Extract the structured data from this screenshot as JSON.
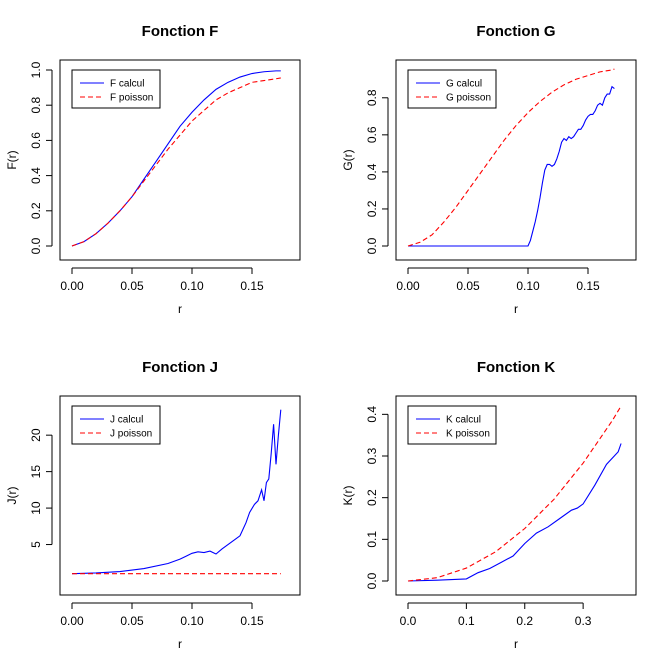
{
  "chart_data": [
    {
      "type": "line",
      "title": "Fonction F",
      "xlabel": "r",
      "ylabel": "F(r)",
      "xlim": [
        0,
        0.18
      ],
      "ylim": [
        0,
        1.0
      ],
      "xticks": [
        "0.00",
        "0.05",
        "0.10",
        "0.15"
      ],
      "yticks": [
        "0.0",
        "0.2",
        "0.4",
        "0.6",
        "0.8",
        "1.0"
      ],
      "legend_position": "top-left",
      "series": [
        {
          "name": "F calcul",
          "color": "#0000ff",
          "style": "solid",
          "x": [
            0,
            0.01,
            0.02,
            0.03,
            0.04,
            0.05,
            0.06,
            0.07,
            0.08,
            0.09,
            0.1,
            0.11,
            0.12,
            0.13,
            0.14,
            0.15,
            0.16,
            0.17,
            0.174
          ],
          "y": [
            0,
            0.025,
            0.07,
            0.13,
            0.2,
            0.28,
            0.38,
            0.48,
            0.58,
            0.68,
            0.76,
            0.83,
            0.89,
            0.93,
            0.96,
            0.98,
            0.99,
            0.995,
            0.995
          ]
        },
        {
          "name": "F poisson",
          "color": "#ff0000",
          "style": "dashed",
          "x": [
            0,
            0.01,
            0.02,
            0.03,
            0.04,
            0.05,
            0.06,
            0.07,
            0.08,
            0.09,
            0.1,
            0.11,
            0.12,
            0.13,
            0.14,
            0.15,
            0.16,
            0.17,
            0.174
          ],
          "y": [
            0,
            0.025,
            0.07,
            0.13,
            0.2,
            0.28,
            0.37,
            0.46,
            0.55,
            0.63,
            0.71,
            0.77,
            0.83,
            0.87,
            0.9,
            0.93,
            0.94,
            0.95,
            0.955
          ]
        }
      ]
    },
    {
      "type": "line",
      "title": "Fonction G",
      "xlabel": "r",
      "ylabel": "G(r)",
      "xlim": [
        0,
        0.18
      ],
      "ylim": [
        0,
        0.95
      ],
      "xticks": [
        "0.00",
        "0.05",
        "0.10",
        "0.15"
      ],
      "yticks": [
        "0.0",
        "0.2",
        "0.4",
        "0.6",
        "0.8"
      ],
      "legend_position": "top-left",
      "series": [
        {
          "name": "G calcul",
          "color": "#0000ff",
          "style": "solid",
          "x": [
            0,
            0.1,
            0.102,
            0.104,
            0.106,
            0.108,
            0.11,
            0.112,
            0.114,
            0.116,
            0.118,
            0.12,
            0.122,
            0.124,
            0.126,
            0.128,
            0.13,
            0.132,
            0.134,
            0.136,
            0.138,
            0.14,
            0.142,
            0.144,
            0.146,
            0.148,
            0.15,
            0.152,
            0.154,
            0.156,
            0.158,
            0.16,
            0.162,
            0.164,
            0.166,
            0.168,
            0.17,
            0.172
          ],
          "y": [
            0,
            0,
            0.03,
            0.08,
            0.13,
            0.19,
            0.26,
            0.34,
            0.41,
            0.44,
            0.44,
            0.43,
            0.44,
            0.47,
            0.51,
            0.56,
            0.58,
            0.57,
            0.59,
            0.58,
            0.59,
            0.61,
            0.63,
            0.63,
            0.65,
            0.68,
            0.7,
            0.71,
            0.71,
            0.73,
            0.76,
            0.77,
            0.76,
            0.8,
            0.82,
            0.82,
            0.86,
            0.85
          ]
        },
        {
          "name": "G poisson",
          "color": "#ff0000",
          "style": "dashed",
          "x": [
            0,
            0.01,
            0.02,
            0.03,
            0.04,
            0.05,
            0.06,
            0.07,
            0.08,
            0.09,
            0.1,
            0.11,
            0.12,
            0.13,
            0.14,
            0.15,
            0.16,
            0.17,
            0.172
          ],
          "y": [
            0,
            0.02,
            0.06,
            0.13,
            0.21,
            0.3,
            0.39,
            0.48,
            0.57,
            0.65,
            0.72,
            0.78,
            0.83,
            0.87,
            0.9,
            0.92,
            0.94,
            0.95,
            0.955
          ]
        }
      ]
    },
    {
      "type": "line",
      "title": "Fonction J",
      "xlabel": "r",
      "ylabel": "J(r)",
      "xlim": [
        0,
        0.18
      ],
      "ylim": [
        0,
        24
      ],
      "xticks": [
        "0.00",
        "0.05",
        "0.10",
        "0.15"
      ],
      "yticks": [
        "5",
        "10",
        "15",
        "20"
      ],
      "legend_position": "top-left",
      "series": [
        {
          "name": "J calcul",
          "color": "#0000ff",
          "style": "solid",
          "x": [
            0,
            0.02,
            0.04,
            0.06,
            0.08,
            0.09,
            0.095,
            0.1,
            0.105,
            0.11,
            0.115,
            0.12,
            0.125,
            0.13,
            0.135,
            0.14,
            0.145,
            0.148,
            0.152,
            0.155,
            0.158,
            0.16,
            0.162,
            0.164,
            0.166,
            0.168,
            0.17,
            0.172,
            0.174
          ],
          "y": [
            1.0,
            1.1,
            1.3,
            1.7,
            2.4,
            3.0,
            3.4,
            3.8,
            4.0,
            3.9,
            4.1,
            3.7,
            4.4,
            5.0,
            5.6,
            6.2,
            8.0,
            9.4,
            10.5,
            11.0,
            12.5,
            11.0,
            13.5,
            14.0,
            17.5,
            21.5,
            16.0,
            20.0,
            23.5
          ]
        },
        {
          "name": "J poisson",
          "color": "#ff0000",
          "style": "dashed",
          "x": [
            0,
            0.174
          ],
          "y": [
            1.0,
            1.0
          ]
        }
      ]
    },
    {
      "type": "line",
      "title": "Fonction K",
      "xlabel": "r",
      "ylabel": "K(r)",
      "xlim": [
        0,
        0.37
      ],
      "ylim": [
        0,
        0.42
      ],
      "xticks": [
        "0.0",
        "0.1",
        "0.2",
        "0.3"
      ],
      "yticks": [
        "0.0",
        "0.1",
        "0.2",
        "0.3",
        "0.4"
      ],
      "legend_position": "top-left",
      "series": [
        {
          "name": "K calcul",
          "color": "#0000ff",
          "style": "solid",
          "x": [
            0,
            0.05,
            0.1,
            0.12,
            0.14,
            0.16,
            0.18,
            0.2,
            0.22,
            0.24,
            0.26,
            0.28,
            0.29,
            0.3,
            0.32,
            0.34,
            0.36,
            0.365
          ],
          "y": [
            0,
            0.002,
            0.005,
            0.02,
            0.03,
            0.045,
            0.06,
            0.09,
            0.115,
            0.13,
            0.15,
            0.17,
            0.175,
            0.185,
            0.23,
            0.28,
            0.31,
            0.33
          ]
        },
        {
          "name": "K poisson",
          "color": "#ff0000",
          "style": "dashed",
          "x": [
            0,
            0.05,
            0.1,
            0.15,
            0.2,
            0.25,
            0.3,
            0.35,
            0.365
          ],
          "y": [
            0,
            0.008,
            0.031,
            0.07,
            0.126,
            0.196,
            0.283,
            0.385,
            0.42
          ]
        }
      ]
    }
  ]
}
